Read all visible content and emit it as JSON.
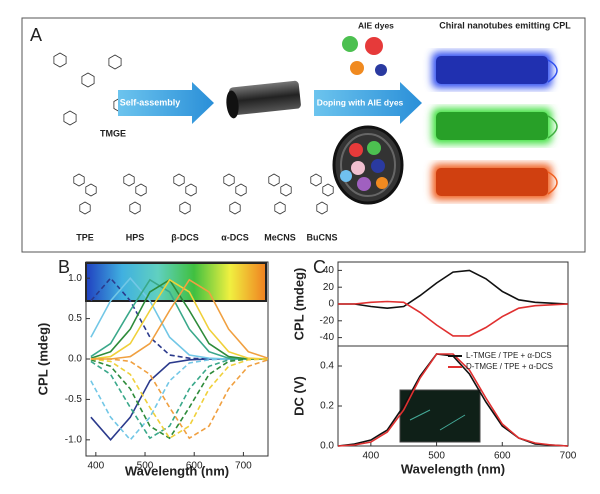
{
  "panel_a": {
    "label": "A",
    "tmge": "TMGE",
    "self_assembly": "Self-assembly",
    "doping": "Doping with AIE dyes",
    "aie_dyes": "AIE dyes",
    "chiral": "Chiral nanotubes emitting CPL",
    "molecules": [
      "TPE",
      "HPS",
      "β-DCS",
      "α-DCS",
      "MeCNS",
      "BuCNS"
    ]
  },
  "chart_data": [
    {
      "type": "line",
      "panel": "B",
      "y_label": "CPL (mdeg)",
      "x_label": "Wavelength (nm)",
      "x": [
        390,
        430,
        470,
        510,
        550,
        590,
        630,
        670,
        710,
        750
      ],
      "xlim": [
        380,
        750
      ],
      "xticks": [
        400,
        500,
        600,
        700
      ],
      "ylim": [
        -1.2,
        1.2
      ],
      "yticks": [
        {
          "value": -1,
          "label": "-1.0"
        },
        -0.5,
        {
          "value": 0,
          "label": "0.0"
        },
        0.5,
        {
          "value": 1,
          "label": "1.0"
        }
      ],
      "series": [
        {
          "color": "#2b3a8c",
          "dashed": false,
          "values": [
            -0.72,
            -1,
            -0.72,
            -0.27,
            -0.05,
            -0.01,
            0,
            0,
            0,
            0
          ]
        },
        {
          "color": "#2b3a8c",
          "dashed": true,
          "values": [
            0.72,
            1,
            0.72,
            0.27,
            0.05,
            0.01,
            0,
            0,
            0,
            0
          ]
        },
        {
          "color": "#72c7e6",
          "dashed": false,
          "values": [
            0.27,
            0.72,
            1,
            0.72,
            0.27,
            0.05,
            0.01,
            0,
            0,
            0
          ]
        },
        {
          "color": "#72c7e6",
          "dashed": true,
          "values": [
            -0.27,
            -0.72,
            -1,
            -0.72,
            -0.27,
            -0.05,
            -0.01,
            0,
            0,
            0
          ]
        },
        {
          "color": "#3aa88a",
          "dashed": false,
          "values": [
            0.03,
            0.19,
            0.6,
            0.98,
            0.83,
            0.37,
            0.09,
            0.01,
            0,
            0
          ]
        },
        {
          "color": "#3aa88a",
          "dashed": true,
          "values": [
            -0.03,
            -0.19,
            -0.6,
            -0.98,
            -0.83,
            -0.37,
            -0.09,
            -0.01,
            0,
            0
          ]
        },
        {
          "color": "#2e8b3a",
          "dashed": false,
          "values": [
            0.01,
            0.09,
            0.37,
            0.83,
            0.98,
            0.6,
            0.19,
            0.03,
            0,
            0
          ]
        },
        {
          "color": "#2e8b3a",
          "dashed": true,
          "values": [
            -0.01,
            -0.09,
            -0.37,
            -0.83,
            -0.98,
            -0.6,
            -0.19,
            -0.03,
            0,
            0
          ]
        },
        {
          "color": "#f0d03a",
          "dashed": false,
          "values": [
            0,
            0.03,
            0.19,
            0.6,
            0.98,
            0.83,
            0.37,
            0.09,
            0.01,
            0
          ]
        },
        {
          "color": "#f0d03a",
          "dashed": true,
          "values": [
            0,
            -0.03,
            -0.19,
            -0.6,
            -0.98,
            -0.83,
            -0.37,
            -0.09,
            -0.01,
            0
          ]
        },
        {
          "color": "#f0a040",
          "dashed": false,
          "values": [
            0,
            0,
            0.03,
            0.19,
            0.6,
            0.98,
            0.83,
            0.37,
            0.09,
            0.01
          ]
        },
        {
          "color": "#f0a040",
          "dashed": true,
          "values": [
            0,
            0,
            -0.03,
            -0.19,
            -0.6,
            -0.98,
            -0.83,
            -0.37,
            -0.09,
            -0.01
          ]
        }
      ]
    },
    {
      "type": "line",
      "panel": "C",
      "y_label": "CPL (mdeg)",
      "x": [
        350,
        375,
        400,
        425,
        450,
        475,
        500,
        525,
        550,
        575,
        600,
        625,
        650,
        675,
        700
      ],
      "xlim": [
        350,
        700
      ],
      "ylim": [
        -50,
        50
      ],
      "yticks": [
        -40,
        -20,
        0,
        20,
        40
      ],
      "series": [
        {
          "color": "#111111",
          "dashed": false,
          "values": [
            0,
            0,
            -3,
            -5,
            -3,
            10,
            25,
            38,
            40,
            30,
            15,
            5,
            2,
            1,
            0
          ]
        },
        {
          "color": "#e03030",
          "dashed": false,
          "values": [
            0,
            0,
            2,
            3,
            2,
            -10,
            -25,
            -38,
            -38,
            -28,
            -15,
            -5,
            -2,
            -1,
            0
          ]
        }
      ]
    },
    {
      "type": "line",
      "y_label": "DC (V)",
      "x_label": "Wavelength (nm)",
      "x": [
        350,
        375,
        400,
        425,
        450,
        475,
        500,
        525,
        550,
        575,
        600,
        625,
        650,
        675,
        700
      ],
      "xlim": [
        350,
        700
      ],
      "xticks": [
        400,
        500,
        600,
        700
      ],
      "ylim": [
        0,
        0.5
      ],
      "yticks": [
        {
          "value": 0,
          "label": "0.0"
        },
        0.2,
        0.4
      ],
      "legend": "upper right",
      "series": [
        {
          "name": "L-TMGE / TPE + α-DCS",
          "color": "#111111",
          "dashed": false,
          "values": [
            0,
            0.01,
            0.03,
            0.08,
            0.2,
            0.35,
            0.46,
            0.45,
            0.36,
            0.22,
            0.1,
            0.04,
            0.01,
            0.005,
            0
          ]
        },
        {
          "name": "D-TMGE / TPE + α-DCS",
          "color": "#e03030",
          "dashed": false,
          "values": [
            0,
            0.005,
            0.02,
            0.07,
            0.18,
            0.34,
            0.46,
            0.46,
            0.38,
            0.24,
            0.11,
            0.04,
            0.015,
            0.005,
            0
          ]
        }
      ]
    }
  ]
}
